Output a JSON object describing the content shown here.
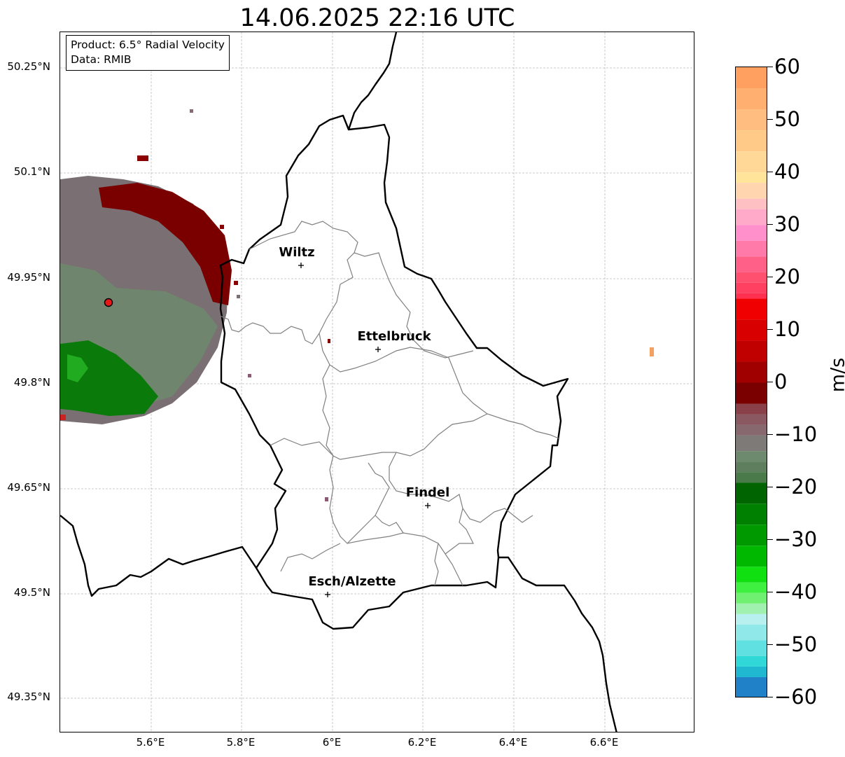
{
  "title": "14.06.2025 22:16 UTC",
  "info_box": {
    "product": "Product: 6.5° Radial Velocity",
    "data_source": "Data: RMIB"
  },
  "latitude_labels": [
    "50.25°N",
    "50.1°N",
    "49.95°N",
    "49.8°N",
    "49.65°N",
    "49.5°N",
    "49.35°N"
  ],
  "longitude_labels": [
    "5.6°E",
    "5.8°E",
    "6°E",
    "6.2°E",
    "6.4°E",
    "6.6°E"
  ],
  "cities": [
    {
      "name": "Wiltz"
    },
    {
      "name": "Ettelbruck"
    },
    {
      "name": "Findel"
    },
    {
      "name": "Esch/Alzette"
    }
  ],
  "colorbar": {
    "unit": "m/s",
    "min": -60,
    "max": 60,
    "tick_labels": [
      "60",
      "50",
      "40",
      "30",
      "20",
      "10",
      "0",
      "−10",
      "−20",
      "−30",
      "−40",
      "−50",
      "−60"
    ]
  },
  "colors": {
    "velocity_positive": "#7a0000",
    "velocity_zero": "#7a6f72",
    "velocity_negative": "#0a7a0a",
    "country_border": "#000000",
    "canton_border": "#808080",
    "grid": "#bbbbbb",
    "radar_site": "#e81818"
  }
}
